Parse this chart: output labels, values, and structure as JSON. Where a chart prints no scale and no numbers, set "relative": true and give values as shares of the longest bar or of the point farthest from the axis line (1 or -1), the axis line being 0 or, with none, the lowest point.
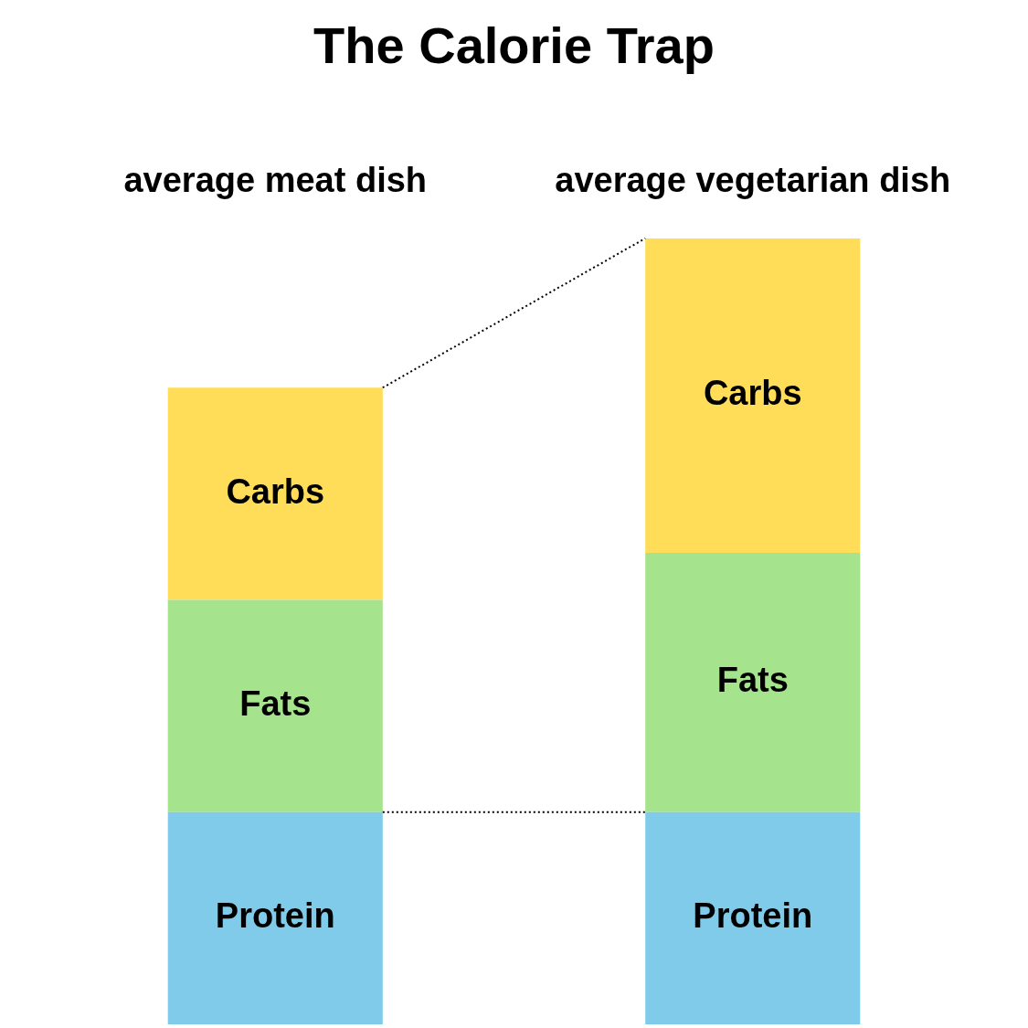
{
  "chart_data": {
    "type": "bar",
    "title": "The Calorie Trap",
    "categories": [
      "average meat dish",
      "average vegetarian dish"
    ],
    "stacked": true,
    "relative": true,
    "series": [
      {
        "name": "Protein",
        "color": "#7fcbe9",
        "values": [
          0.27,
          0.27
        ]
      },
      {
        "name": "Fats",
        "color": "#a5e38c",
        "values": [
          0.27,
          0.33
        ]
      },
      {
        "name": "Carbs",
        "color": "#ffdd59",
        "values": [
          0.27,
          0.4
        ]
      }
    ]
  }
}
